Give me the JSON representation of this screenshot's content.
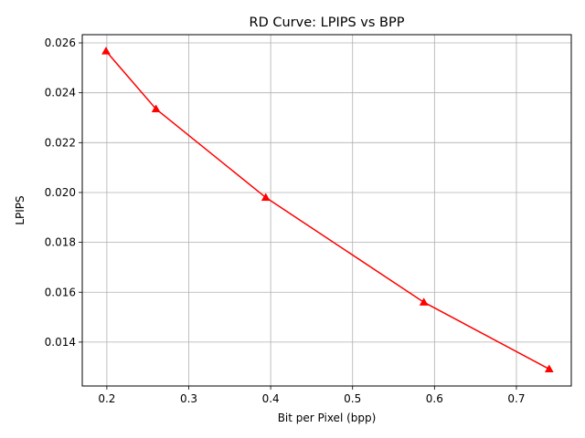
{
  "chart_data": {
    "type": "line",
    "title": "RD Curve: LPIPS vs BPP",
    "xlabel": "Bit per Pixel (bpp)",
    "ylabel": "LPIPS",
    "xlim": [
      0.17,
      0.767
    ],
    "ylim": [
      0.01224,
      0.02633
    ],
    "xticks": [
      0.2,
      0.3,
      0.4,
      0.5,
      0.6,
      0.7
    ],
    "xtick_labels": [
      "0.2",
      "0.3",
      "0.4",
      "0.5",
      "0.6",
      "0.7"
    ],
    "yticks": [
      0.014,
      0.016,
      0.018,
      0.02,
      0.022,
      0.024,
      0.026
    ],
    "ytick_labels": [
      "0.014",
      "0.016",
      "0.018",
      "0.020",
      "0.022",
      "0.024",
      "0.026"
    ],
    "grid": true,
    "series": [
      {
        "color": "#ff0000",
        "marker": "triangle",
        "x": [
          0.199,
          0.26,
          0.394,
          0.587,
          0.74
        ],
        "y": [
          0.02567,
          0.02335,
          0.0198,
          0.0156,
          0.01292
        ]
      }
    ]
  }
}
